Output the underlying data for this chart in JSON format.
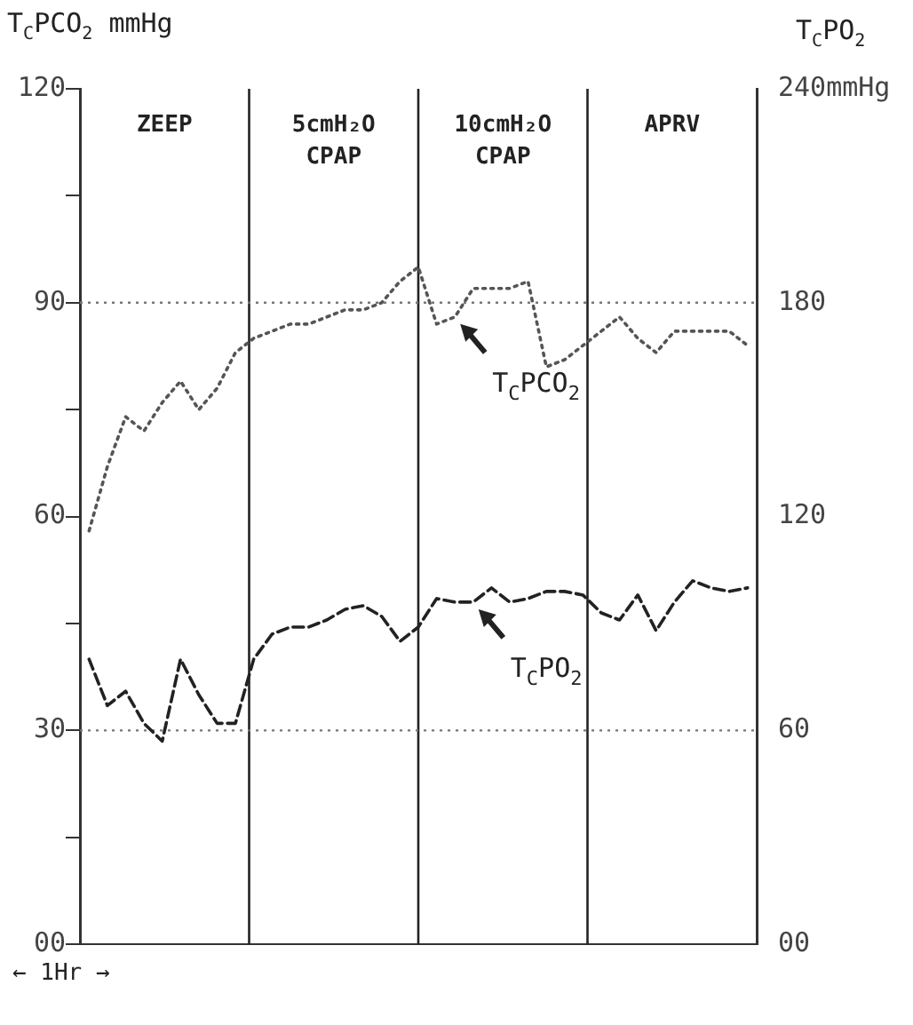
{
  "chart_data": {
    "type": "line",
    "ylabel": "T$_{C}$PCO$_{2}$ mmHg",
    "y2label": "T$_{C}$PO$_{2}$",
    "categories": [
      null,
      null,
      null,
      null,
      null,
      null,
      null,
      null,
      null,
      null,
      null,
      null,
      null,
      null,
      null,
      null,
      null,
      null,
      null,
      null,
      null,
      null,
      null,
      null,
      null,
      null,
      null,
      null,
      null,
      null,
      null,
      null,
      null,
      null,
      null,
      null,
      null
    ],
    "ylim": [
      0,
      120
    ],
    "yticks": [
      {
        "value": 0,
        "label": "00"
      },
      {
        "value": 15,
        "label": null
      },
      30,
      {
        "value": 45,
        "label": null
      },
      60,
      {
        "value": 75,
        "label": null
      },
      90,
      {
        "value": 105,
        "label": null
      },
      120
    ],
    "y2lim": [
      0,
      240
    ],
    "y2ticks": [
      {
        "value": 0,
        "label": "00"
      },
      60,
      120,
      180,
      {
        "value": 240,
        "label": "240mmHg"
      }
    ],
    "grid": false,
    "legend": false,
    "marker": "none",
    "series": [
      {
        "color": "#555555",
        "line_style": "dotted",
        "values": [
          58,
          67,
          74,
          72,
          76,
          79,
          75,
          78,
          83,
          85,
          86,
          87,
          87,
          88,
          89,
          89,
          90,
          93,
          95,
          87,
          88,
          92,
          92,
          92,
          93,
          81,
          82,
          84,
          86,
          88,
          85,
          83,
          86,
          86,
          86,
          86,
          84
        ]
      },
      {
        "color": "#222222",
        "line_style": "dashed",
        "axis": "y2",
        "values": [
          80,
          67,
          71,
          62,
          57,
          80,
          70,
          62,
          62,
          80,
          87,
          89,
          89,
          91,
          94,
          95,
          92,
          85,
          89,
          97,
          96,
          96,
          100,
          96,
          97,
          99,
          99,
          98,
          93,
          91,
          98,
          88,
          96,
          102,
          100,
          99,
          100
        ]
      }
    ],
    "ref_lines": [
      {
        "axis": "y",
        "value": 30,
        "line_style": "dotted",
        "color": "#777777"
      },
      {
        "axis": "y",
        "value": 90,
        "line_style": "dotted",
        "color": "#777777"
      }
    ],
    "annotations": [
      "← 1Hr →",
      "ZEEP",
      "5cmH₂O CPAP",
      "10cmH₂O CPAP",
      "APRV",
      "T$_{C}$PCO$_{2}$",
      "T$_{C}$PO$_{2}$"
    ]
  }
}
